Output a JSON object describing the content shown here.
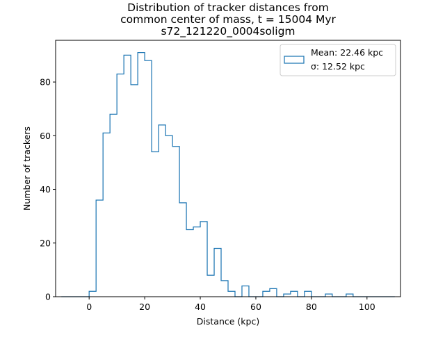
{
  "chart_data": {
    "type": "histogram",
    "title_lines": [
      "Distribution of tracker distances from",
      "common center of mass, t = 15004 Myr",
      "s72_121220_0004soligm"
    ],
    "xlabel": "Distance (kpc)",
    "ylabel": "Number of trackers",
    "xlim": [
      -12.06,
      112.06
    ],
    "ylim": [
      0,
      95.55
    ],
    "x_ticks": [
      0,
      20,
      40,
      60,
      80,
      100
    ],
    "y_ticks": [
      0,
      20,
      40,
      60,
      80
    ],
    "bin_edges": [
      -10,
      -7.5,
      -5,
      -2.5,
      0,
      2.5,
      5,
      7.5,
      10,
      12.5,
      15,
      17.5,
      20,
      22.5,
      25,
      27.5,
      30,
      32.5,
      35,
      37.5,
      40,
      42.5,
      45,
      47.5,
      50,
      52.5,
      55,
      57.5,
      60,
      62.5,
      65,
      67.5,
      70,
      72.5,
      75,
      77.5,
      80,
      82.5,
      85,
      87.5,
      90,
      92.5,
      95,
      97.5,
      100,
      102.5,
      105,
      107.5,
      110
    ],
    "counts": [
      0,
      0,
      0,
      0,
      2,
      36,
      61,
      68,
      83,
      90,
      79,
      91,
      88,
      54,
      64,
      60,
      56,
      35,
      25,
      26,
      28,
      8,
      18,
      6,
      2,
      0,
      4,
      0,
      0,
      2,
      3,
      0,
      1,
      2,
      0,
      2,
      0,
      0,
      1,
      0,
      0,
      1,
      0,
      0,
      0,
      0,
      0,
      0
    ],
    "legend": {
      "location": "upper right",
      "lines": [
        "Mean: 22.46 kpc",
        "σ: 12.52 kpc"
      ]
    },
    "series_color": "#1f77b4",
    "grid": false
  }
}
